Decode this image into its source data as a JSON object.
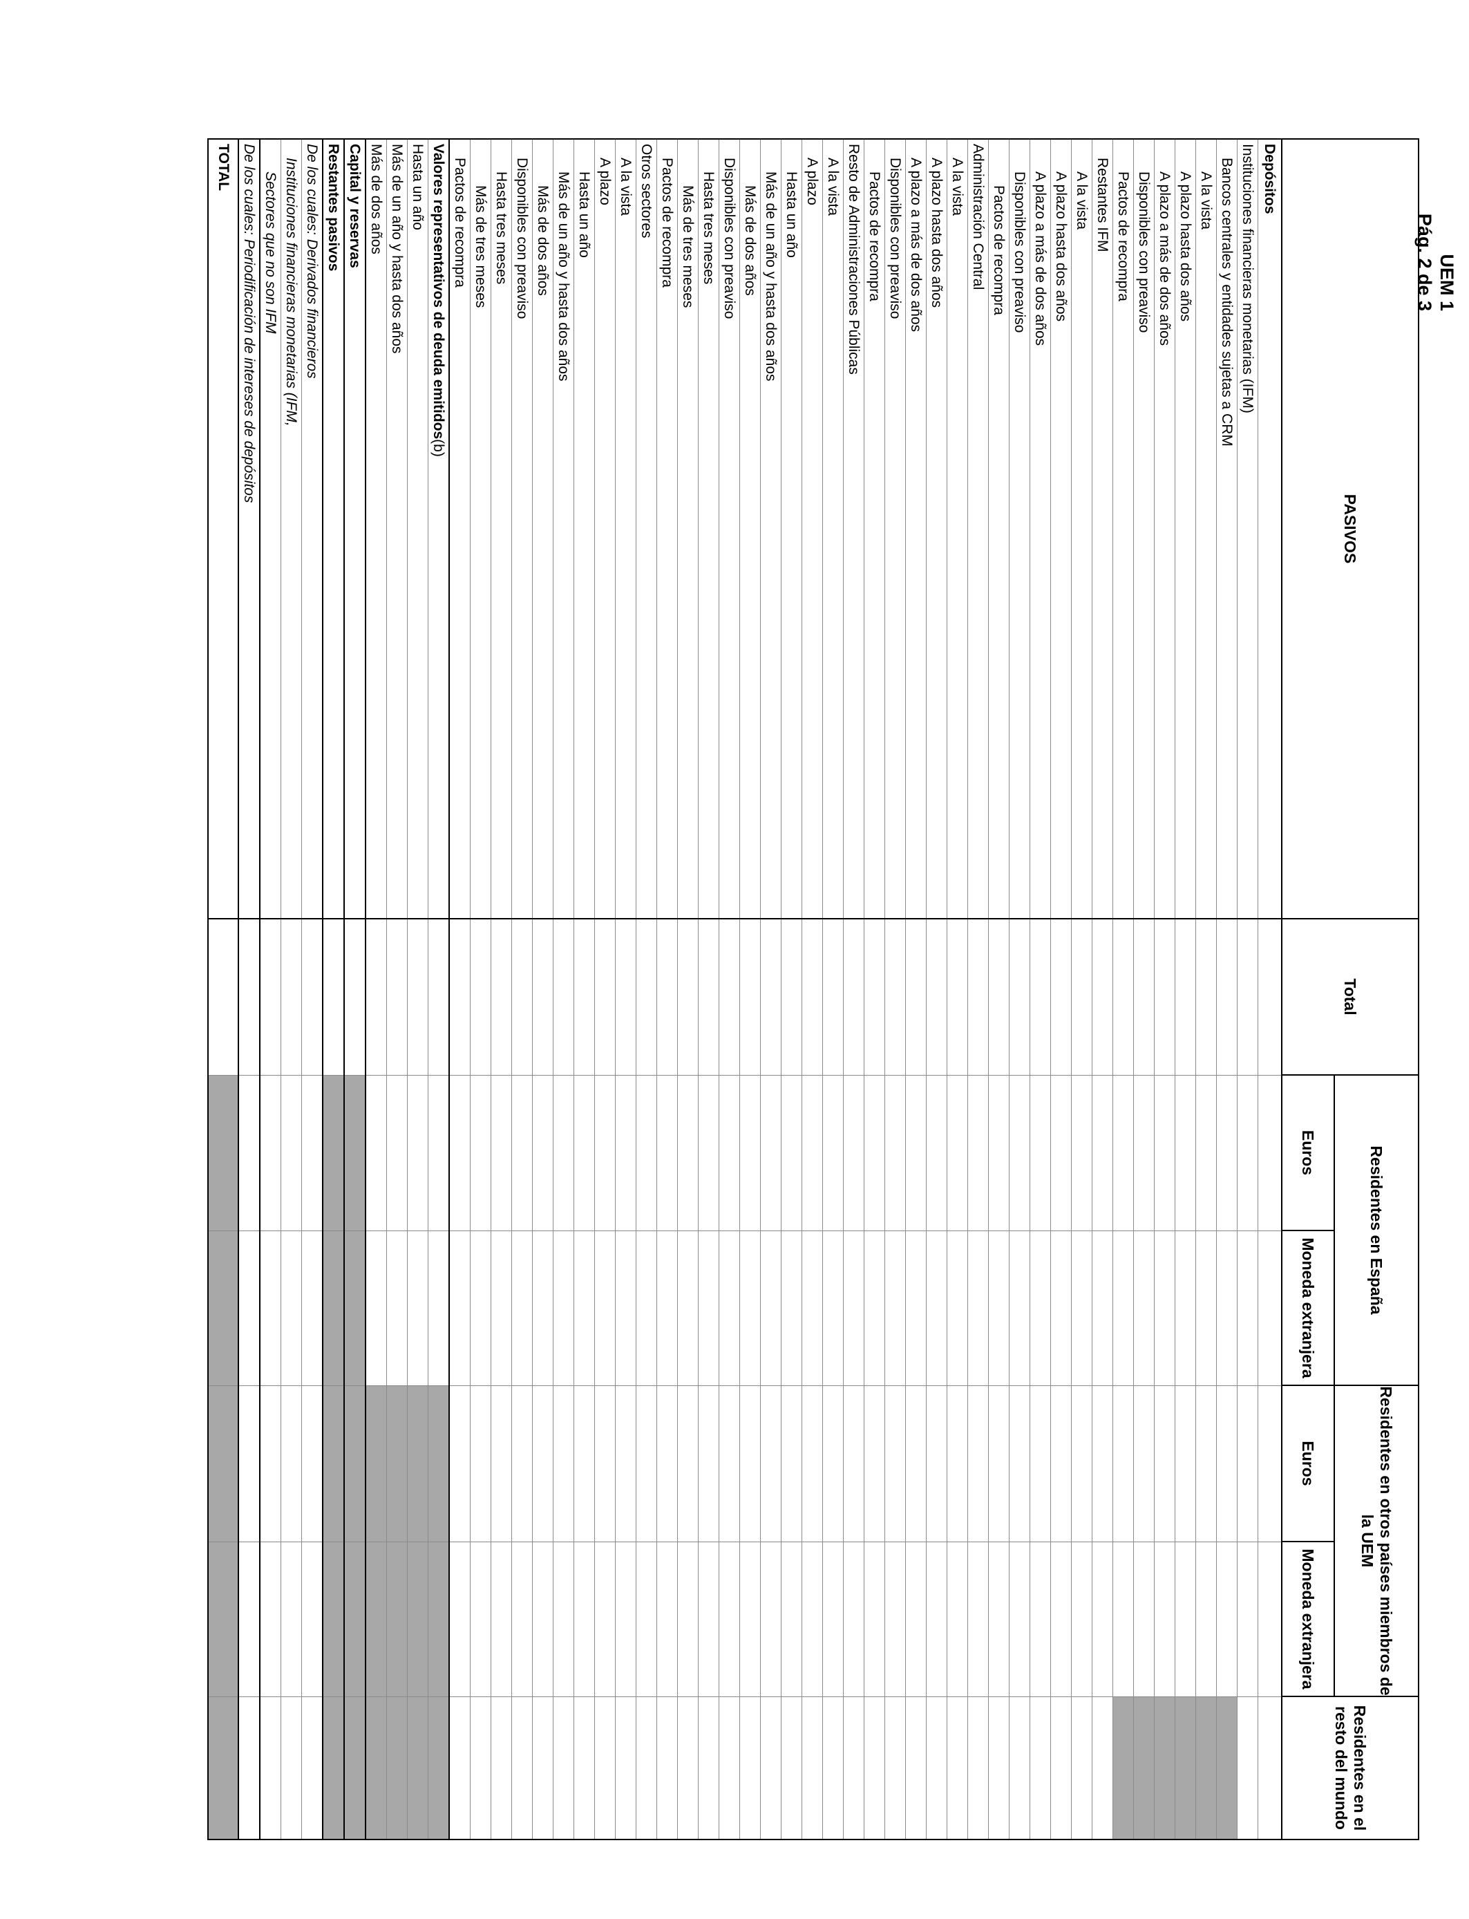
{
  "header": {
    "code": "UEM 1",
    "page": "Pág. 2 de 3"
  },
  "table": {
    "columns": {
      "label": "PASIVOS",
      "total": "Total",
      "espana": "Residentes en España",
      "uem": "Residentes en otros países miembros de la UEM",
      "resto": "Residentes en el resto del mundo",
      "euros": "Euros",
      "moneda": "Moneda extranjera"
    },
    "rows": [
      {
        "label": "Depósitos",
        "indent": 0,
        "style": "bold",
        "shade": []
      },
      {
        "label": "Instituciones financieras monetarias (IFM)",
        "indent": 0,
        "style": "",
        "shade": []
      },
      {
        "label": "Bancos centrales y entidades sujetas a CRM",
        "indent": 1,
        "style": "",
        "shade": [
          5
        ]
      },
      {
        "label": "A la vista",
        "indent": 2,
        "style": "",
        "shade": [
          5
        ]
      },
      {
        "label": "A plazo hasta dos años",
        "indent": 2,
        "style": "",
        "shade": [
          5
        ]
      },
      {
        "label": "A plazo a más de dos años",
        "indent": 2,
        "style": "",
        "shade": [
          5
        ]
      },
      {
        "label": "Disponibles con preaviso",
        "indent": 2,
        "style": "",
        "shade": [
          5
        ]
      },
      {
        "label": "Pactos de recompra",
        "indent": 2,
        "style": "",
        "shade": [
          5
        ]
      },
      {
        "label": "Restantes IFM",
        "indent": 1,
        "style": "",
        "shade": []
      },
      {
        "label": "A la vista",
        "indent": 2,
        "style": "",
        "shade": []
      },
      {
        "label": "A plazo hasta dos años",
        "indent": 2,
        "style": "",
        "shade": []
      },
      {
        "label": "A plazo a más de dos años",
        "indent": 2,
        "style": "",
        "shade": []
      },
      {
        "label": "Disponibles con preaviso",
        "indent": 2,
        "style": "",
        "shade": []
      },
      {
        "label": "Pactos de recompra",
        "indent": 3,
        "style": "",
        "shade": []
      },
      {
        "label": "Administración Central",
        "indent": 0,
        "style": "",
        "shade": []
      },
      {
        "label": "A la vista",
        "indent": 1,
        "style": "",
        "shade": []
      },
      {
        "label": "A plazo hasta dos años",
        "indent": 1,
        "style": "",
        "shade": []
      },
      {
        "label": "A plazo a más de dos años",
        "indent": 1,
        "style": "",
        "shade": []
      },
      {
        "label": "Disponibles con preaviso",
        "indent": 1,
        "style": "",
        "shade": []
      },
      {
        "label": "Pactos de recompra",
        "indent": 2,
        "style": "",
        "shade": []
      },
      {
        "label": "Resto de Administraciones Públicas",
        "indent": 0,
        "style": "",
        "shade": []
      },
      {
        "label": "A la vista",
        "indent": 1,
        "style": "",
        "shade": []
      },
      {
        "label": "A plazo",
        "indent": 1,
        "style": "",
        "shade": []
      },
      {
        "label": "Hasta un año",
        "indent": 2,
        "style": "",
        "shade": []
      },
      {
        "label": "Más de un año y hasta dos años",
        "indent": 2,
        "style": "",
        "shade": []
      },
      {
        "label": "Más de dos años",
        "indent": 3,
        "style": "",
        "shade": []
      },
      {
        "label": "Disponibles con preaviso",
        "indent": 1,
        "style": "",
        "shade": []
      },
      {
        "label": "Hasta tres meses",
        "indent": 2,
        "style": "",
        "shade": []
      },
      {
        "label": "Más de tres meses",
        "indent": 3,
        "style": "",
        "shade": []
      },
      {
        "label": "Pactos de recompra",
        "indent": 1,
        "style": "",
        "shade": []
      },
      {
        "label": "Otros sectores",
        "indent": 0,
        "style": "",
        "shade": []
      },
      {
        "label": "A la vista",
        "indent": 1,
        "style": "",
        "shade": []
      },
      {
        "label": "A plazo",
        "indent": 1,
        "style": "",
        "shade": []
      },
      {
        "label": "Hasta un año",
        "indent": 2,
        "style": "",
        "shade": []
      },
      {
        "label": "Más de un año y hasta dos años",
        "indent": 2,
        "style": "",
        "shade": []
      },
      {
        "label": "Más de dos años",
        "indent": 3,
        "style": "",
        "shade": []
      },
      {
        "label": "Disponibles con preaviso",
        "indent": 1,
        "style": "",
        "shade": []
      },
      {
        "label": "Hasta tres meses",
        "indent": 2,
        "style": "",
        "shade": []
      },
      {
        "label": "Más de tres meses",
        "indent": 3,
        "style": "",
        "shade": []
      },
      {
        "label": "Pactos de recompra",
        "indent": 1,
        "style": "",
        "shade": []
      },
      {
        "label": "Valores representativos de deuda emitidos",
        "suffix": "(b)",
        "indent": 0,
        "style": "bold",
        "section": true,
        "shade": [
          3,
          4,
          5
        ]
      },
      {
        "label": "Hasta un año",
        "indent": 0,
        "style": "",
        "shade": [
          3,
          4,
          5
        ]
      },
      {
        "label": "Más de un año y hasta dos años",
        "indent": 0,
        "style": "",
        "shade": [
          3,
          4,
          5
        ]
      },
      {
        "label": "Más de dos años",
        "indent": 0,
        "style": "",
        "shade": [
          3,
          4,
          5
        ]
      },
      {
        "label": "Capital y reservas",
        "indent": 0,
        "style": "bold",
        "section": true,
        "shade": [
          1,
          2,
          3,
          4,
          5
        ]
      },
      {
        "label": "Restantes pasivos",
        "indent": 0,
        "style": "bold",
        "section": true,
        "shade": [
          1,
          2,
          3,
          4,
          5
        ]
      },
      {
        "label": "De los cuales: Derivados financieros",
        "indent": 0,
        "style": "italic",
        "section": true,
        "shade": []
      },
      {
        "label": "Instituciones financieras monetarias (IFM,",
        "indent": 1,
        "style": "italic",
        "shade": []
      },
      {
        "label": "Sectores que no son IFM",
        "indent": 2,
        "style": "italic",
        "shade": []
      },
      {
        "label": "De los cuales: Periodificación de intereses de depósitos",
        "indent": 0,
        "style": "italic",
        "section": true,
        "shade": []
      },
      {
        "label": "TOTAL",
        "indent": 0,
        "style": "bold",
        "total": true,
        "shade": [
          1,
          2,
          3,
          4,
          5
        ]
      }
    ]
  }
}
